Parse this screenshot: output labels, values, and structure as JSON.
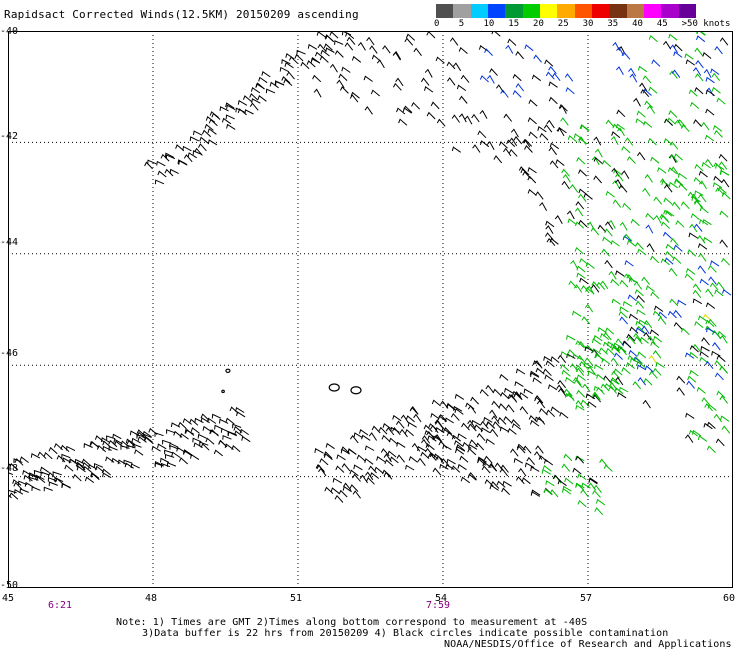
{
  "title": "Rapidsact Corrected Winds(12.5KM) 20150209 ascending",
  "legend": {
    "colors": [
      "#505050",
      "#a0a0a0",
      "#00ccff",
      "#0044ff",
      "#009933",
      "#00cc00",
      "#ffff00",
      "#ffaa00",
      "#ff5500",
      "#ee0000",
      "#773311",
      "#bb7744",
      "#ff00ff",
      "#aa00cc",
      "#660099"
    ],
    "labels": [
      "0",
      "5",
      "10",
      "15",
      "20",
      "25",
      "30",
      "35",
      "40",
      "45",
      ">50 knots"
    ]
  },
  "map_data": {
    "lon_range": [
      45,
      60
    ],
    "lat_range": [
      -40,
      -50
    ],
    "x_ticks": [
      "45",
      "48",
      "51",
      "54",
      "57",
      "60"
    ],
    "y_ticks": [
      "-40",
      "-42",
      "-44",
      "-46",
      "-48",
      "-50"
    ],
    "grid": "dotted",
    "time_labels": [
      "6:21",
      "7:59"
    ]
  },
  "notes": {
    "line1": "Note: 1) Times are GMT 2)Times along bottom correspond to measurement at -40S",
    "line2": "3)Data buffer is 22 hrs from 20150209 4) Black circles indicate possible contamination",
    "credit": "NOAA/NESDIS/Office of Research and Applications"
  }
}
